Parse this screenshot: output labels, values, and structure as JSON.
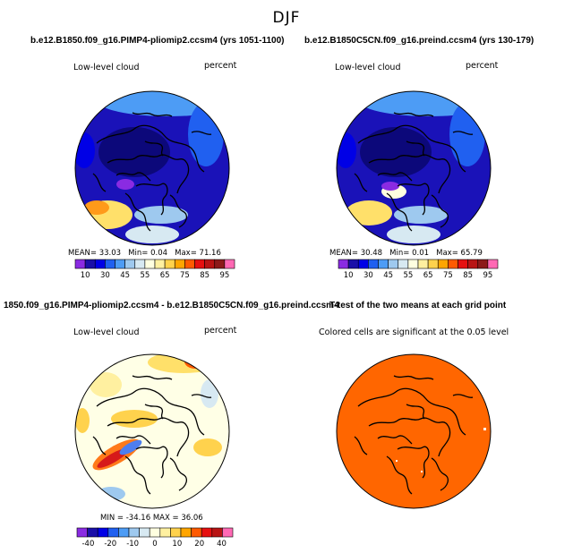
{
  "title": "DJF",
  "panels": [
    {
      "id": "pliocene",
      "title": "b.e12.B1850.f09_g16.PIMP4-pliomip2.ccsm4 (yrs 1051-1100)",
      "variable": "Low-level cloud",
      "units": "percent",
      "stats": {
        "mean_label": "MEAN=",
        "mean": "33.03",
        "min_label": "Min=",
        "min": "0.04",
        "max_label": "Max=",
        "max": "71.16"
      }
    },
    {
      "id": "preindustrial",
      "title": "b.e12.B1850C5CN.f09_g16.preind.ccsm4 (yrs 130-179)",
      "variable": "Low-level cloud",
      "units": "percent",
      "stats": {
        "mean_label": "MEAN=",
        "mean": "30.48",
        "min_label": "Min=",
        "min": "0.01",
        "max_label": "Max=",
        "max": "65.79"
      }
    },
    {
      "id": "difference",
      "title": "1850.f09_g16.PIMP4-pliomip2.ccsm4 - b.e12.B1850C5CN.f09_g16.preind.ccsm4",
      "variable": "Low-level cloud",
      "units": "percent",
      "stats_text": "MIN = -34.16 MAX = 36.06"
    },
    {
      "id": "ttest",
      "title": "T-test of the two means at each grid point",
      "caption": "Colored cells are significant at the 0.05 level"
    }
  ],
  "colorbar_abs": {
    "labels": [
      "10",
      "30",
      "45",
      "55",
      "65",
      "75",
      "85",
      "95"
    ],
    "colors": [
      "#8a2be2",
      "#1a0fa8",
      "#0000e6",
      "#2060f0",
      "#4d9cf5",
      "#9ec9ef",
      "#d7e9f2",
      "#ffffe0",
      "#fff0a0",
      "#ffd24d",
      "#ffa500",
      "#ff5a00",
      "#e61010",
      "#b81414",
      "#8c1a1a",
      "#ff69b4"
    ]
  },
  "colorbar_diff": {
    "labels": [
      "-40",
      "-20",
      "-10",
      "0",
      "10",
      "20",
      "40"
    ],
    "colors": [
      "#8a2be2",
      "#1a0fa8",
      "#0000e6",
      "#2060f0",
      "#4d9cf5",
      "#9ec9ef",
      "#d7e9f2",
      "#ffffe0",
      "#fff0a0",
      "#ffd24d",
      "#ffa500",
      "#ff5a00",
      "#e61010",
      "#b81414",
      "#ff69b4"
    ]
  },
  "significance_color": "#ff6600"
}
